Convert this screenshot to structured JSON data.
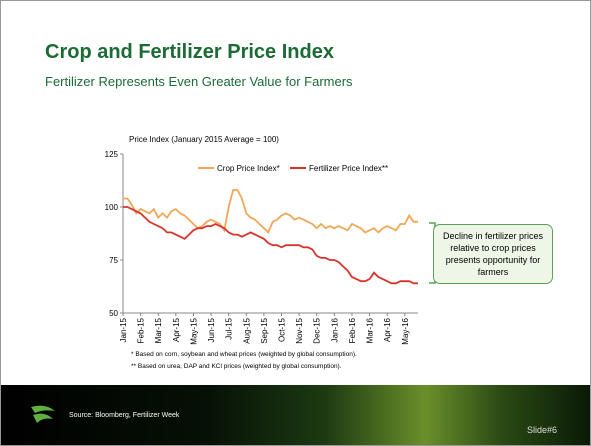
{
  "title": "Crop and Fertilizer Price Index",
  "subtitle": "Fertilizer Represents Even Greater Value for Farmers",
  "chart_data": {
    "type": "line",
    "y_label": "Price Index (January 2015 Average = 100)",
    "categories": [
      "Jan-15",
      null,
      null,
      null,
      "Feb-15",
      null,
      null,
      null,
      "Mar-15",
      null,
      null,
      null,
      "Apr-15",
      null,
      null,
      null,
      "May-15",
      null,
      null,
      null,
      "Jun-15",
      null,
      null,
      null,
      "Jul-15",
      null,
      null,
      null,
      "Aug-15",
      null,
      null,
      null,
      "Sep-15",
      null,
      null,
      null,
      "Oct-15",
      null,
      null,
      null,
      "Nov-15",
      null,
      null,
      null,
      "Dec-15",
      null,
      null,
      null,
      "Jan-16",
      null,
      null,
      null,
      "Feb-16",
      null,
      null,
      null,
      "Mar-16",
      null,
      null,
      null,
      "Apr-16",
      null,
      null,
      null,
      "May-16",
      null,
      null,
      null
    ],
    "series": [
      {
        "name": "Crop Price Index*",
        "color": "#f0a858",
        "values": [
          104,
          104,
          101,
          97,
          99,
          98,
          97,
          99,
          95,
          97,
          95,
          98,
          99,
          97,
          96,
          94,
          92,
          90,
          91,
          93,
          94,
          93,
          92,
          89,
          100,
          108,
          108,
          104,
          97,
          95,
          94,
          92,
          90,
          88,
          93,
          94,
          96,
          97,
          96,
          94,
          95,
          94,
          93,
          92,
          90,
          92,
          90,
          91,
          90,
          91,
          90,
          89,
          92,
          91,
          90,
          88,
          89,
          90,
          88,
          90,
          91,
          90,
          89,
          92,
          92,
          96,
          93,
          93
        ]
      },
      {
        "name": "Fertilizer Price Index**",
        "color": "#d9342b",
        "values": [
          100,
          100,
          99,
          98,
          97,
          95,
          93,
          92,
          91,
          90,
          88,
          88,
          87,
          86,
          85,
          87,
          89,
          90,
          90,
          91,
          91,
          92,
          91,
          90,
          88,
          87,
          87,
          86,
          87,
          88,
          87,
          86,
          85,
          83,
          82,
          82,
          81,
          82,
          82,
          82,
          82,
          81,
          81,
          80,
          77,
          76,
          76,
          75,
          75,
          74,
          72,
          70,
          67,
          66,
          65,
          65,
          66,
          69,
          67,
          66,
          65,
          64,
          64,
          65,
          65,
          65,
          64,
          64
        ]
      }
    ],
    "ylim": [
      50,
      125
    ],
    "yticks": [
      50,
      75,
      100,
      125
    ],
    "legend": "top"
  },
  "annotation": "Decline in fertilizer prices relative to crop prices presents opportunity for farmers",
  "footnotes": [
    "* Based on corn, soybean and wheat prices (weighted by global consumption).",
    "** Based on urea, DAP and KCl prices (weighted by global consumption)."
  ],
  "source": "Source: Bloomberg, Fertilizer Week",
  "slide_number": "Slide#6"
}
